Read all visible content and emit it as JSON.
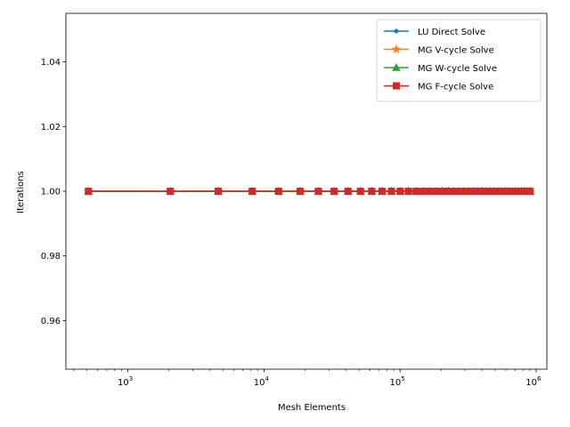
{
  "chart_data": {
    "type": "line",
    "xlabel": "Mesh Elements",
    "ylabel": "Iterations",
    "xscale": "log",
    "xlim": [
      350,
      1200000
    ],
    "ylim": [
      0.945,
      1.055
    ],
    "x_major_ticks": [
      {
        "value": 1000,
        "base": "10",
        "exp": "3"
      },
      {
        "value": 10000,
        "base": "10",
        "exp": "4"
      },
      {
        "value": 100000,
        "base": "10",
        "exp": "5"
      },
      {
        "value": 1000000,
        "base": "10",
        "exp": "6"
      }
    ],
    "y_ticks": [
      0.96,
      0.98,
      1.0,
      1.02,
      1.04
    ],
    "y_tick_labels": [
      "0.96",
      "0.98",
      "1.00",
      "1.02",
      "1.04"
    ],
    "grid": false,
    "legend_position": "top-right",
    "x": [
      512,
      2048,
      4608,
      8192,
      12800,
      18432,
      25088,
      32768,
      41472,
      51200,
      61952,
      73728,
      86528,
      100352,
      115200,
      131072,
      147968,
      165888,
      184832,
      204800,
      225792,
      247808,
      270848,
      294912,
      320000,
      346112,
      373248,
      401408,
      430592,
      460800,
      492032,
      524288,
      557568,
      591872,
      627200,
      663552,
      700928,
      739328,
      778752,
      819200,
      860672,
      903168
    ],
    "series": [
      {
        "name": "LU Direct Solve",
        "color": "#1f77b4",
        "marker": "circle-small",
        "y": [
          1,
          1,
          1,
          1,
          1,
          1,
          1,
          1,
          1,
          1,
          1,
          1,
          1,
          1,
          1,
          1,
          1,
          1,
          1,
          1,
          1,
          1,
          1,
          1,
          1,
          1,
          1,
          1,
          1,
          1,
          1,
          1,
          1,
          1,
          1,
          1,
          1,
          1,
          1,
          1,
          1,
          1
        ]
      },
      {
        "name": "MG V-cycle Solve",
        "color": "#ff7f0e",
        "marker": "star",
        "y": [
          1,
          1,
          1,
          1,
          1,
          1,
          1,
          1,
          1,
          1,
          1,
          1,
          1,
          1,
          1,
          1,
          1,
          1,
          1,
          1,
          1,
          1,
          1,
          1,
          1,
          1,
          1,
          1,
          1,
          1,
          1,
          1,
          1,
          1,
          1,
          1,
          1,
          1,
          1,
          1,
          1,
          1
        ]
      },
      {
        "name": "MG W-cycle Solve",
        "color": "#2ca02c",
        "marker": "triangle",
        "y": [
          1,
          1,
          1,
          1,
          1,
          1,
          1,
          1,
          1,
          1,
          1,
          1,
          1,
          1,
          1,
          1,
          1,
          1,
          1,
          1,
          1,
          1,
          1,
          1,
          1,
          1,
          1,
          1,
          1,
          1,
          1,
          1,
          1,
          1,
          1,
          1,
          1,
          1,
          1,
          1,
          1,
          1
        ]
      },
      {
        "name": "MG F-cycle Solve",
        "color": "#d62728",
        "marker": "square",
        "y": [
          1,
          1,
          1,
          1,
          1,
          1,
          1,
          1,
          1,
          1,
          1,
          1,
          1,
          1,
          1,
          1,
          1,
          1,
          1,
          1,
          1,
          1,
          1,
          1,
          1,
          1,
          1,
          1,
          1,
          1,
          1,
          1,
          1,
          1,
          1,
          1,
          1,
          1,
          1,
          1,
          1,
          1
        ]
      }
    ]
  }
}
